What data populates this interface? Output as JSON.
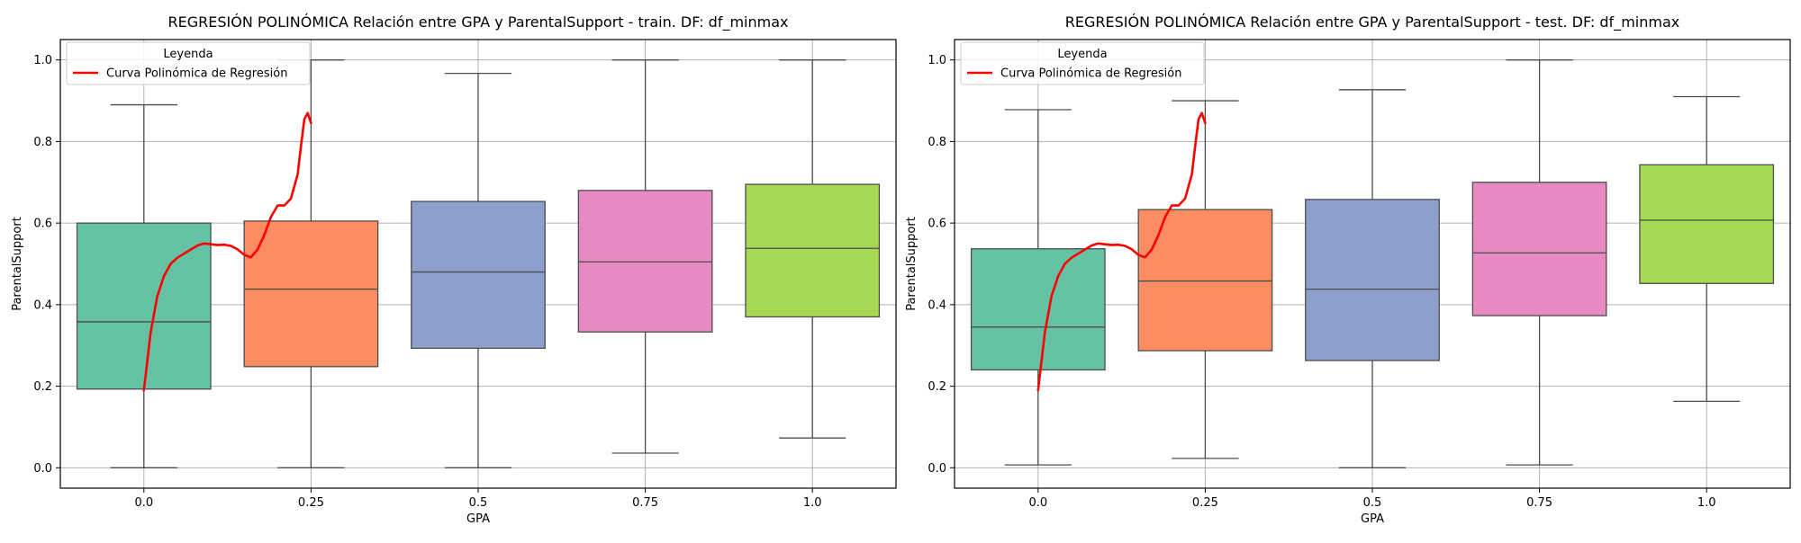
{
  "chart_data": [
    {
      "type": "box",
      "title": "REGRESIÓN POLINÓMICA Relación entre GPA y ParentalSupport - train. DF: df_minmax",
      "xlabel": "GPA",
      "ylabel": "ParentalSupport",
      "ylim": [
        -0.05,
        1.05
      ],
      "yticks": [
        "0.0",
        "0.2",
        "0.4",
        "0.6",
        "0.8",
        "1.0"
      ],
      "categories": [
        "0.0",
        "0.25",
        "0.5",
        "0.75",
        "1.0"
      ],
      "grid": true,
      "legend": {
        "title": "Leyenda",
        "position": "top-left",
        "entries": [
          "Curva Polinómica de Regresión"
        ]
      },
      "boxes": [
        {
          "category": "0.0",
          "min": 0.0,
          "q1": 0.193,
          "median": 0.358,
          "q3": 0.6,
          "max": 0.89,
          "color": "#66c2a5"
        },
        {
          "category": "0.25",
          "min": 0.0,
          "q1": 0.248,
          "median": 0.438,
          "q3": 0.605,
          "max": 1.0,
          "color": "#fc8d62"
        },
        {
          "category": "0.5",
          "min": 0.0,
          "q1": 0.293,
          "median": 0.48,
          "q3": 0.653,
          "max": 0.967,
          "color": "#8da0cb"
        },
        {
          "category": "0.75",
          "min": 0.036,
          "q1": 0.333,
          "median": 0.505,
          "q3": 0.68,
          "max": 1.0,
          "color": "#e78ac3"
        },
        {
          "category": "1.0",
          "min": 0.073,
          "q1": 0.37,
          "median": 0.538,
          "q3": 0.695,
          "max": 1.0,
          "color": "#a6d854"
        }
      ],
      "curve": {
        "name": "Curva Polinómica de Regresión",
        "color": "#ff0000",
        "x": [
          0.0,
          0.01,
          0.02,
          0.03,
          0.04,
          0.05,
          0.06,
          0.07,
          0.08,
          0.09,
          0.1,
          0.11,
          0.12,
          0.13,
          0.14,
          0.15,
          0.16,
          0.17,
          0.18,
          0.19,
          0.2,
          0.21,
          0.22,
          0.23,
          0.235,
          0.24,
          0.245,
          0.25
        ],
        "y": [
          0.19,
          0.33,
          0.42,
          0.47,
          0.5,
          0.515,
          0.525,
          0.535,
          0.545,
          0.55,
          0.548,
          0.546,
          0.547,
          0.544,
          0.536,
          0.522,
          0.516,
          0.535,
          0.57,
          0.615,
          0.643,
          0.643,
          0.66,
          0.72,
          0.79,
          0.855,
          0.87,
          0.845
        ]
      }
    },
    {
      "type": "box",
      "title": "REGRESIÓN POLINÓMICA Relación entre GPA y ParentalSupport - test. DF: df_minmax",
      "xlabel": "GPA",
      "ylabel": "ParentalSupport",
      "ylim": [
        -0.05,
        1.05
      ],
      "yticks": [
        "0.0",
        "0.2",
        "0.4",
        "0.6",
        "0.8",
        "1.0"
      ],
      "categories": [
        "0.0",
        "0.25",
        "0.5",
        "0.75",
        "1.0"
      ],
      "grid": true,
      "legend": {
        "title": "Leyenda",
        "position": "top-left",
        "entries": [
          "Curva Polinómica de Regresión"
        ]
      },
      "boxes": [
        {
          "category": "0.0",
          "min": 0.007,
          "q1": 0.24,
          "median": 0.345,
          "q3": 0.537,
          "max": 0.878,
          "color": "#66c2a5"
        },
        {
          "category": "0.25",
          "min": 0.023,
          "q1": 0.287,
          "median": 0.458,
          "q3": 0.633,
          "max": 0.9,
          "color": "#fc8d62"
        },
        {
          "category": "0.5",
          "min": 0.0,
          "q1": 0.263,
          "median": 0.438,
          "q3": 0.658,
          "max": 0.927,
          "color": "#8da0cb"
        },
        {
          "category": "0.75",
          "min": 0.007,
          "q1": 0.373,
          "median": 0.527,
          "q3": 0.7,
          "max": 1.0,
          "color": "#e78ac3"
        },
        {
          "category": "1.0",
          "min": 0.163,
          "q1": 0.452,
          "median": 0.607,
          "q3": 0.743,
          "max": 0.91,
          "color": "#a6d854"
        }
      ],
      "curve": {
        "name": "Curva Polinómica de Regresión",
        "color": "#ff0000",
        "x": [
          0.0,
          0.01,
          0.02,
          0.03,
          0.04,
          0.05,
          0.06,
          0.07,
          0.08,
          0.09,
          0.1,
          0.11,
          0.12,
          0.13,
          0.14,
          0.15,
          0.16,
          0.17,
          0.18,
          0.19,
          0.2,
          0.21,
          0.22,
          0.23,
          0.235,
          0.24,
          0.245,
          0.25
        ],
        "y": [
          0.19,
          0.33,
          0.42,
          0.47,
          0.5,
          0.515,
          0.525,
          0.535,
          0.545,
          0.55,
          0.548,
          0.546,
          0.547,
          0.544,
          0.536,
          0.522,
          0.516,
          0.535,
          0.57,
          0.615,
          0.643,
          0.643,
          0.66,
          0.72,
          0.79,
          0.855,
          0.87,
          0.845
        ]
      }
    }
  ]
}
